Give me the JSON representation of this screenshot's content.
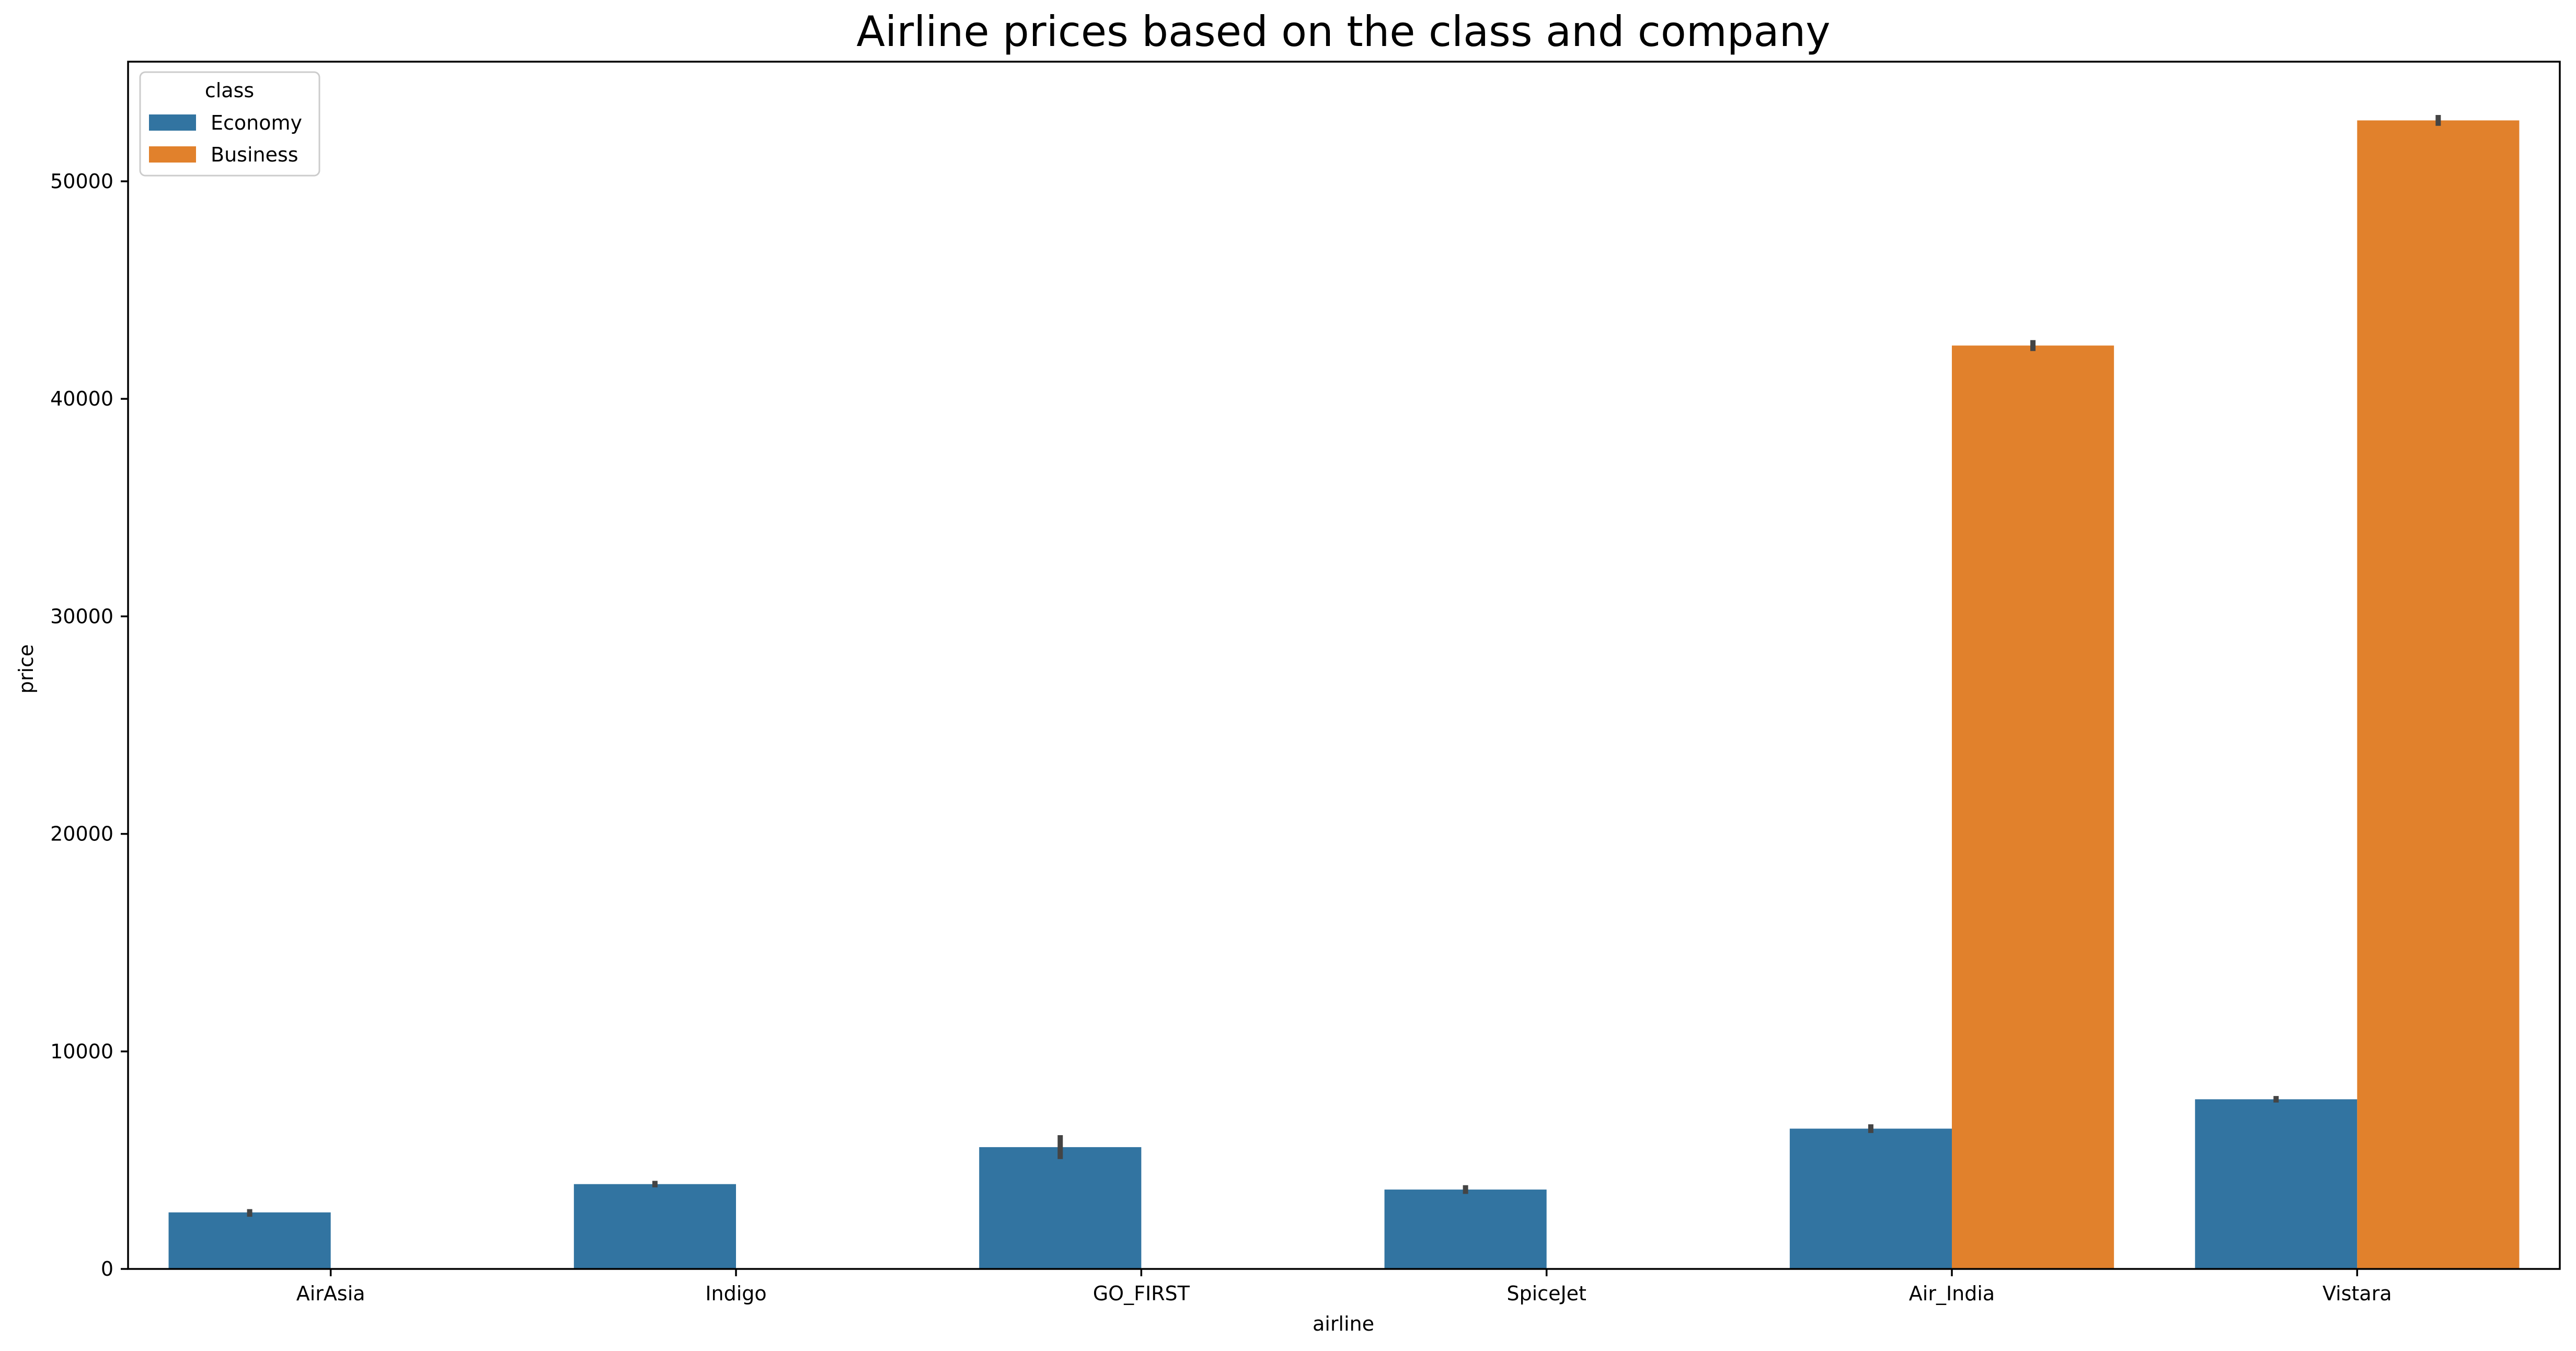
{
  "chart_data": {
    "type": "bar",
    "title": "Airline prices based on the class and company",
    "xlabel": "airline",
    "ylabel": "price",
    "categories": [
      "AirAsia",
      "Indigo",
      "GO_FIRST",
      "SpiceJet",
      "Air_India",
      "Vistara"
    ],
    "series": [
      {
        "name": "Economy",
        "color": "#3274a1",
        "values": [
          2600,
          3900,
          5600,
          3650,
          6450,
          7800
        ],
        "error_low": [
          2400,
          3750,
          5050,
          3450,
          6250,
          7650
        ],
        "error_high": [
          2750,
          4050,
          6150,
          3850,
          6650,
          7950
        ]
      },
      {
        "name": "Business",
        "color": "#e1812c",
        "values": [
          null,
          null,
          null,
          null,
          42450,
          52800
        ],
        "error_low": [
          null,
          null,
          null,
          null,
          42200,
          52550
        ],
        "error_high": [
          null,
          null,
          null,
          null,
          42700,
          53050
        ]
      }
    ],
    "yticks": [
      0,
      10000,
      20000,
      30000,
      40000,
      50000
    ],
    "ylim": [
      0,
      55500
    ],
    "legend": {
      "title": "class",
      "position": "upper-left"
    },
    "grid": false
  }
}
